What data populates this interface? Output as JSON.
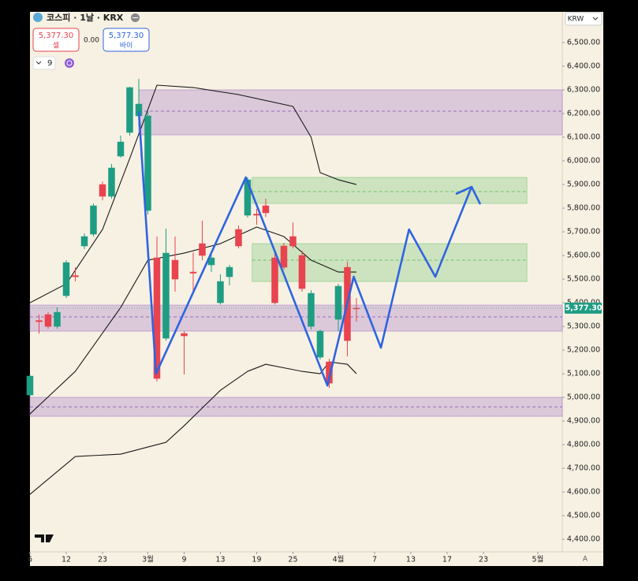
{
  "toolbar": {
    "symbol": "코스피 · 1날 · KRX",
    "sell_price": "5,377.30",
    "sell_label": "셀",
    "spread": "0.00",
    "buy_price": "5,377.30",
    "buy_label": "바이",
    "indicator_count": "9",
    "currency": "KRW",
    "auto_scale": "A"
  },
  "chart_data": {
    "type": "candlestick",
    "up_color": "#e8434f",
    "down_color": "#1e9d83",
    "open": [
      5090,
      5320,
      5300,
      5360,
      5570,
      5510,
      5680,
      5810,
      5850,
      5970,
      6080,
      6310,
      6240,
      6190,
      5080,
      5610,
      5500,
      5260,
      5525,
      5600,
      5590,
      5490,
      5550,
      5640,
      5920,
      5770,
      5780,
      5400,
      5550,
      5640,
      5460,
      5440,
      5280,
      5060,
      5470,
      5240,
      5375
    ],
    "high": [
      5095,
      5350,
      5360,
      5380,
      5580,
      5550,
      5693,
      5820,
      5913,
      5987,
      6107,
      6313,
      6347,
      6213,
      5680,
      5713,
      5680,
      5280,
      5613,
      5747,
      5620,
      5520,
      5560,
      5727,
      5930,
      5797,
      5840,
      5613,
      5653,
      5740,
      5620,
      5453,
      5287,
      5163,
      5480,
      5573,
      5420
    ],
    "low": [
      5005,
      5270,
      5290,
      5290,
      5420,
      5490,
      5627,
      5680,
      5833,
      5840,
      6013,
      6107,
      6147,
      5773,
      5067,
      5240,
      5447,
      5097,
      5440,
      5580,
      5530,
      5393,
      5473,
      5630,
      5760,
      5730,
      5763,
      5393,
      5540,
      5630,
      5447,
      5287,
      5160,
      5040,
      5280,
      5173,
      5320
    ],
    "close": [
      5010,
      5325,
      5350,
      5300,
      5430,
      5515,
      5640,
      5690,
      5900,
      5850,
      6020,
      6120,
      6190,
      5790,
      5590,
      5250,
      5580,
      5270,
      5530,
      5650,
      5560,
      5400,
      5510,
      5710,
      5770,
      5775,
      5810,
      5590,
      5640,
      5680,
      5600,
      5300,
      5170,
      5150,
      5330,
      5550,
      5377.3
    ],
    "xlim": [
      0,
      58.7
    ],
    "xticks": [
      {
        "value": 0,
        "label": "6"
      },
      {
        "value": 4,
        "label": "12"
      },
      {
        "value": 8,
        "label": "23"
      },
      {
        "value": 13,
        "label": "3월"
      },
      {
        "value": 17,
        "label": "9"
      },
      {
        "value": 21,
        "label": "13"
      },
      {
        "value": 25,
        "label": "19"
      },
      {
        "value": 29,
        "label": "25"
      },
      {
        "value": 34,
        "label": "4월"
      },
      {
        "value": 38,
        "label": "7"
      },
      {
        "value": 42,
        "label": "13"
      },
      {
        "value": 46,
        "label": "17"
      },
      {
        "value": 50,
        "label": "23"
      },
      {
        "value": 56,
        "label": "5월"
      }
    ],
    "ylim": [
      4347,
      6630
    ],
    "yticks": [
      {
        "value": 6500,
        "label": "6,500.00"
      },
      {
        "value": 6400,
        "label": "6,400.00"
      },
      {
        "value": 6300,
        "label": "6,300.00"
      },
      {
        "value": 6200,
        "label": "6,200.00"
      },
      {
        "value": 6100,
        "label": "6,100.00"
      },
      {
        "value": 6000,
        "label": "6,000.00"
      },
      {
        "value": 5900,
        "label": "5,900.00"
      },
      {
        "value": 5800,
        "label": "5,800.00"
      },
      {
        "value": 5700,
        "label": "5,700.00"
      },
      {
        "value": 5600,
        "label": "5,600.00"
      },
      {
        "value": 5500,
        "label": "5,500.00"
      },
      {
        "value": 5400,
        "label": "5,400.00"
      },
      {
        "value": 5300,
        "label": "5,300.00"
      },
      {
        "value": 5200,
        "label": "5,200.00"
      },
      {
        "value": 5100,
        "label": "5,100.00"
      },
      {
        "value": 5000,
        "label": "5,000.00"
      },
      {
        "value": 4900,
        "label": "4,900.00"
      },
      {
        "value": 4800,
        "label": "4,800.00"
      },
      {
        "value": 4700,
        "label": "4,700.00"
      },
      {
        "value": 4600,
        "label": "4,600.00"
      },
      {
        "value": 4500,
        "label": "4,500.00"
      },
      {
        "value": 4400,
        "label": "4,400.00"
      }
    ],
    "last_price": {
      "value": 5377.3,
      "label": "5,377.30"
    },
    "last_price_color": "#1e9d83",
    "overlays": [
      {
        "color": "#1a1a1a",
        "x": [
          0,
          4,
          8,
          11,
          14,
          18,
          23,
          29,
          31,
          32,
          34,
          36
        ],
        "values": [
          5400,
          5480,
          5710,
          6010,
          6320,
          6310,
          6280,
          6230,
          6100,
          5950,
          5920,
          5900
        ]
      },
      {
        "color": "#1a1a1a",
        "x": [
          0,
          5,
          10,
          13,
          17,
          21,
          25,
          28,
          31,
          34,
          36
        ],
        "values": [
          4930,
          5110,
          5380,
          5580,
          5610,
          5650,
          5720,
          5680,
          5580,
          5530,
          5530
        ]
      },
      {
        "color": "#1a1a1a",
        "x": [
          0,
          5,
          10,
          12,
          15,
          17,
          21,
          24,
          26,
          30,
          32,
          33,
          35,
          36
        ],
        "values": [
          4590,
          4750,
          4760,
          4780,
          4810,
          4880,
          5030,
          5110,
          5140,
          5110,
          5100,
          5150,
          5140,
          5100
        ]
      }
    ],
    "zones": [
      {
        "color": "#9b6cc4",
        "x": [
          12,
          58.7
        ],
        "range": [
          6110,
          6300
        ],
        "mid": 6210
      },
      {
        "color": "#9b6cc4",
        "x": [
          0,
          58.7
        ],
        "range": [
          5280,
          5390
        ],
        "mid": 5340
      },
      {
        "color": "#9b6cc4",
        "x": [
          0,
          58.7
        ],
        "range": [
          4920,
          5000
        ],
        "mid": 4960
      },
      {
        "color": "#6cc46c",
        "x": [
          24.5,
          54.8
        ],
        "range": [
          5820,
          5930
        ],
        "mid": 5870
      },
      {
        "color": "#6cc46c",
        "x": [
          24.5,
          54.8
        ],
        "range": [
          5490,
          5650
        ],
        "mid": 5580
      }
    ],
    "projection": {
      "color": "#2f64e0",
      "x": [
        12,
        13.9,
        23.8,
        32.8,
        35.7,
        38.7,
        41.8,
        44.7,
        48.7
      ],
      "values": [
        6210,
        5100,
        5930,
        5050,
        5510,
        5210,
        5710,
        5510,
        5890
      ]
    }
  }
}
